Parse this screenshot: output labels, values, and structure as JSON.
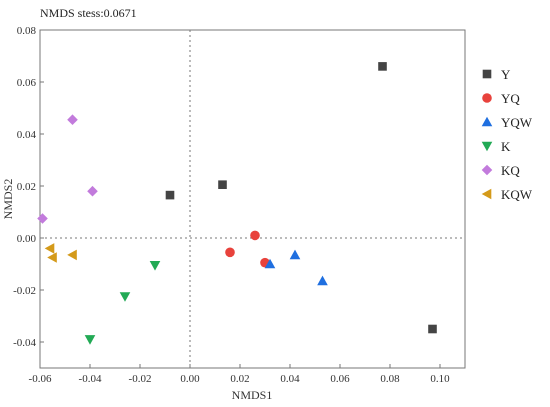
{
  "chart_data": {
    "type": "scatter",
    "title": "NMDS stess:0.0671",
    "xlabel": "NMDS1",
    "ylabel": "NMDS2",
    "xlim": [
      -0.06,
      0.11
    ],
    "ylim": [
      -0.05,
      0.08
    ],
    "xticks": [
      "-0.06",
      "-0.04",
      "-0.02",
      "0.00",
      "0.02",
      "0.04",
      "0.06",
      "0.08",
      "0.10"
    ],
    "xtick_values": [
      -0.06,
      -0.04,
      -0.02,
      0.0,
      0.02,
      0.04,
      0.06,
      0.08,
      0.1
    ],
    "yticks": [
      "0.08",
      "0.06",
      "0.04",
      "0.02",
      "0.00",
      "-0.02",
      "-0.04"
    ],
    "ytick_values": [
      0.08,
      0.06,
      0.04,
      0.02,
      0.0,
      -0.02,
      -0.04
    ],
    "reference_lines": {
      "x": 0,
      "y": 0,
      "style": "dotted"
    },
    "grid": false,
    "legend_position": "right",
    "series": [
      {
        "name": "Y",
        "marker": "square",
        "color": "#444444",
        "points": [
          [
            0.077,
            0.066
          ],
          [
            0.097,
            -0.035
          ],
          [
            0.013,
            0.0205
          ],
          [
            -0.008,
            0.0165
          ]
        ]
      },
      {
        "name": "YQ",
        "marker": "circle",
        "color": "#e8423c",
        "points": [
          [
            0.026,
            0.001
          ],
          [
            0.016,
            -0.0055
          ],
          [
            0.03,
            -0.0095
          ]
        ]
      },
      {
        "name": "YQW",
        "marker": "triangle-up",
        "color": "#1f6fe0",
        "points": [
          [
            0.032,
            -0.01
          ],
          [
            0.042,
            -0.0065
          ],
          [
            0.053,
            -0.0165
          ]
        ]
      },
      {
        "name": "K",
        "marker": "triangle-down",
        "color": "#22aa55",
        "points": [
          [
            -0.014,
            -0.0105
          ],
          [
            -0.026,
            -0.0225
          ],
          [
            -0.04,
            -0.039
          ]
        ]
      },
      {
        "name": "KQ",
        "marker": "diamond",
        "color": "#c27bdc",
        "points": [
          [
            -0.047,
            0.0455
          ],
          [
            -0.039,
            0.018
          ],
          [
            -0.059,
            0.0075
          ]
        ]
      },
      {
        "name": "KQW",
        "marker": "triangle-left",
        "color": "#d49a1a",
        "points": [
          [
            -0.056,
            -0.004
          ],
          [
            -0.055,
            -0.0075
          ],
          [
            -0.047,
            -0.0065
          ]
        ]
      }
    ]
  }
}
